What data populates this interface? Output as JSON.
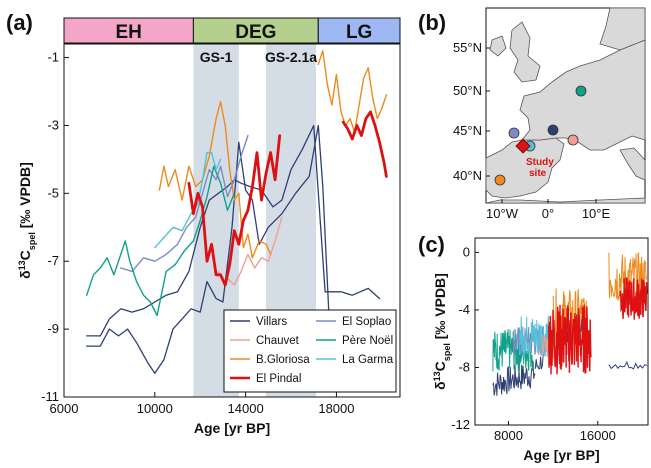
{
  "chart_data": [
    {
      "panel": "(a)",
      "type": "line",
      "xlabel": "Age [yr BP]",
      "ylabel_main": "δ",
      "ylabel_sup": "13",
      "ylabel_c": "C",
      "ylabel_sub": "spel",
      "ylabel_unit": " [‰ VPDB]",
      "xlim": [
        6000,
        20800
      ],
      "ylim": [
        -11,
        -0.6
      ],
      "xticks": [
        6000,
        10000,
        14000,
        18000
      ],
      "yticks": [
        -11,
        -9,
        -7,
        -5,
        -3,
        -1
      ],
      "epochs": [
        {
          "label": "EH",
          "start": 6000,
          "end": 11700,
          "color": "#f4a6c8"
        },
        {
          "label": "DEG",
          "start": 11700,
          "end": 17200,
          "color": "#b5d08e"
        },
        {
          "label": "LG",
          "start": 17200,
          "end": 20800,
          "color": "#9db8f2"
        }
      ],
      "stadials": [
        {
          "label": "GS-1",
          "start": 11700,
          "end": 13700
        },
        {
          "label": "GS-2.1a",
          "start": 14900,
          "end": 17100
        }
      ],
      "series": [
        {
          "name": "Villars",
          "color": "#2e3f73",
          "width": 1.3,
          "points": [
            [
              7000,
              -9.2
            ],
            [
              7600,
              -9.2
            ],
            [
              8000,
              -8.7
            ],
            [
              8500,
              -8.4
            ],
            [
              9000,
              -8.5
            ],
            [
              9500,
              -8.4
            ],
            [
              10000,
              -8.2
            ],
            [
              10500,
              -8.0
            ],
            [
              11000,
              -7.9
            ],
            [
              11500,
              -7.3
            ],
            [
              12000,
              -6.0
            ],
            [
              12400,
              -5.2
            ],
            [
              12800,
              -5.0
            ],
            [
              13200,
              -4.8
            ],
            [
              13500,
              -4.6
            ],
            [
              13800,
              -4.7
            ],
            [
              14200,
              -4.8
            ],
            [
              14700,
              -4.9
            ],
            [
              15200,
              -5.4
            ],
            [
              15600,
              -5.2
            ],
            [
              16000,
              -4.3
            ],
            [
              16500,
              -3.7
            ],
            [
              17000,
              -3.0
            ],
            [
              17500,
              -7.9
            ],
            [
              18200,
              -7.9
            ],
            [
              18700,
              -8.0
            ],
            [
              19400,
              -7.8
            ],
            [
              19900,
              -8.1
            ]
          ]
        },
        {
          "name": "Villars",
          "color": "#2e3f73",
          "width": 1.3,
          "points": [
            [
              7000,
              -9.5
            ],
            [
              7600,
              -9.5
            ],
            [
              8000,
              -9.0
            ],
            [
              8400,
              -9.2
            ],
            [
              8800,
              -9.0
            ],
            [
              9200,
              -9.4
            ],
            [
              9700,
              -10.0
            ],
            [
              10000,
              -10.3
            ],
            [
              10400,
              -9.9
            ],
            [
              10800,
              -9.0
            ],
            [
              11200,
              -8.7
            ],
            [
              11600,
              -8.4
            ],
            [
              12000,
              -8.5
            ],
            [
              12300,
              -7.6
            ],
            [
              12700,
              -8.1
            ],
            [
              13000,
              -8.2
            ],
            [
              13400,
              -6.0
            ],
            [
              13700,
              -3.5
            ],
            [
              14000,
              -4.9
            ],
            [
              14300,
              -5.2
            ],
            [
              14600,
              -6.5
            ],
            [
              15000,
              -6.0
            ],
            [
              15600,
              -5.6
            ],
            [
              16200,
              -5.0
            ],
            [
              16800,
              -4.5
            ],
            [
              17200,
              -3.0
            ],
            [
              17400,
              -4.8
            ],
            [
              17700,
              -9.0
            ],
            [
              18000,
              -9.4
            ],
            [
              18600,
              -10.3
            ],
            [
              19000,
              -9.6
            ],
            [
              19500,
              -8.6
            ],
            [
              19900,
              -8.9
            ]
          ]
        },
        {
          "name": "Chauvet",
          "color": "#f0a090",
          "width": 1.4,
          "points": [
            [
              12800,
              -7.3
            ],
            [
              13000,
              -7.6
            ],
            [
              13200,
              -7.5
            ],
            [
              13500,
              -7.7
            ],
            [
              13800,
              -7.3
            ],
            [
              14100,
              -6.8
            ],
            [
              14400,
              -7.2
            ],
            [
              14700,
              -6.9
            ],
            [
              15000,
              -7.0
            ],
            [
              15300,
              -6.4
            ],
            [
              15600,
              -5.7
            ]
          ]
        },
        {
          "name": "B.Gloriosa",
          "color": "#ee8a1e",
          "width": 1.4,
          "points": [
            [
              10200,
              -4.9
            ],
            [
              10400,
              -4.2
            ],
            [
              10600,
              -4.8
            ],
            [
              10900,
              -4.3
            ],
            [
              11200,
              -5.2
            ],
            [
              11500,
              -4.2
            ],
            [
              11800,
              -4.8
            ],
            [
              12100,
              -4.6
            ],
            [
              12400,
              -3.9
            ],
            [
              12700,
              -2.8
            ],
            [
              12900,
              -2.3
            ],
            [
              13100,
              -3.0
            ],
            [
              13300,
              -4.3
            ],
            [
              13500,
              -5.2
            ],
            [
              13700,
              -5.0
            ],
            [
              13900,
              -6.6
            ],
            [
              14100,
              -6.2
            ],
            [
              14300,
              -6.9
            ],
            [
              14600,
              -6.4
            ],
            [
              14900,
              -6.5
            ],
            [
              15100,
              -6.8
            ]
          ]
        },
        {
          "name": "B.Gloriosa",
          "color": "#ee8a1e",
          "width": 1.4,
          "points": [
            [
              17200,
              -1.2
            ],
            [
              17400,
              -0.8
            ],
            [
              17600,
              -1.8
            ],
            [
              17800,
              -2.4
            ],
            [
              18000,
              -1.5
            ],
            [
              18200,
              -2.6
            ],
            [
              18400,
              -3.0
            ],
            [
              18600,
              -2.8
            ],
            [
              18800,
              -3.2
            ],
            [
              19000,
              -2.4
            ],
            [
              19200,
              -1.6
            ],
            [
              19400,
              -1.3
            ],
            [
              19600,
              -2.2
            ],
            [
              19800,
              -2.8
            ],
            [
              20000,
              -2.5
            ],
            [
              20200,
              -2.1
            ]
          ]
        },
        {
          "name": "El Pindal",
          "color": "#dd1111",
          "width": 2.8,
          "points": [
            [
              11500,
              -4.7
            ],
            [
              11700,
              -5.6
            ],
            [
              11900,
              -5.0
            ],
            [
              12100,
              -5.4
            ],
            [
              12300,
              -7.0
            ],
            [
              12500,
              -6.5
            ],
            [
              12700,
              -7.4
            ],
            [
              12900,
              -7.4
            ],
            [
              13100,
              -7.7
            ],
            [
              13300,
              -7.1
            ],
            [
              13500,
              -6.1
            ],
            [
              13700,
              -6.5
            ],
            [
              13900,
              -5.8
            ],
            [
              14100,
              -5.5
            ],
            [
              14300,
              -4.8
            ],
            [
              14500,
              -3.8
            ],
            [
              14700,
              -5.2
            ],
            [
              14900,
              -4.4
            ],
            [
              15100,
              -3.8
            ],
            [
              15300,
              -4.6
            ],
            [
              15500,
              -3.3
            ]
          ]
        },
        {
          "name": "El Pindal",
          "color": "#dd1111",
          "width": 2.8,
          "points": [
            [
              18300,
              -2.9
            ],
            [
              18500,
              -3.1
            ],
            [
              18700,
              -3.4
            ],
            [
              18900,
              -3.0
            ],
            [
              19100,
              -3.3
            ],
            [
              19300,
              -2.8
            ],
            [
              19500,
              -2.6
            ],
            [
              19700,
              -3.0
            ],
            [
              19900,
              -3.5
            ],
            [
              20100,
              -4.1
            ],
            [
              20200,
              -4.5
            ]
          ]
        },
        {
          "name": "El Soplao",
          "color": "#7f89c6",
          "width": 1.4,
          "points": [
            [
              8500,
              -7.2
            ],
            [
              9000,
              -7.3
            ],
            [
              9500,
              -6.9
            ],
            [
              10000,
              -7.0
            ],
            [
              10500,
              -6.8
            ],
            [
              11000,
              -6.5
            ],
            [
              11400,
              -6.0
            ],
            [
              11800,
              -5.7
            ],
            [
              12100,
              -5.0
            ],
            [
              12400,
              -4.3
            ],
            [
              12700,
              -4.6
            ],
            [
              12900,
              -4.2
            ],
            [
              13200,
              -5.1
            ],
            [
              13500,
              -4.6
            ],
            [
              13800,
              -3.9
            ],
            [
              14100,
              -3.3
            ]
          ]
        },
        {
          "name": "Père Noël",
          "color": "#13a08a",
          "width": 1.4,
          "points": [
            [
              7000,
              -8.0
            ],
            [
              7300,
              -7.4
            ],
            [
              7600,
              -7.2
            ],
            [
              7900,
              -6.9
            ],
            [
              8200,
              -7.4
            ],
            [
              8500,
              -6.8
            ],
            [
              8700,
              -6.4
            ],
            [
              8900,
              -7.0
            ],
            [
              9200,
              -7.6
            ],
            [
              9500,
              -8.0
            ],
            [
              9800,
              -8.2
            ],
            [
              10100,
              -8.6
            ],
            [
              10500,
              -7.3
            ],
            [
              10900,
              -7.1
            ],
            [
              11300,
              -6.7
            ],
            [
              11700,
              -6.4
            ],
            [
              12000,
              -5.8
            ],
            [
              12300,
              -5.1
            ],
            [
              12600,
              -4.2
            ],
            [
              12900,
              -4.7
            ],
            [
              13200,
              -5.5
            ],
            [
              13500,
              -5.0
            ]
          ]
        },
        {
          "name": "La Garma",
          "color": "#55c0d8",
          "width": 1.4,
          "points": [
            [
              10000,
              -6.6
            ],
            [
              10400,
              -6.3
            ],
            [
              10800,
              -6.0
            ],
            [
              11200,
              -6.1
            ],
            [
              11600,
              -5.6
            ],
            [
              11900,
              -5.3
            ],
            [
              12100,
              -4.6
            ],
            [
              12300,
              -3.8
            ],
            [
              12500,
              -3.8
            ],
            [
              12700,
              -4.3
            ],
            [
              12900,
              -4.0
            ]
          ]
        }
      ],
      "legend": [
        "Villars",
        "Chauvet",
        "B.Gloriosa",
        "El Pindal",
        "El Soplao",
        "Père Noël",
        "La Garma"
      ]
    },
    {
      "panel": "(b)",
      "type": "map",
      "lat_ticks": [
        "55°N",
        "50°N",
        "45°N",
        "40°N"
      ],
      "lon_ticks": [
        "10°W",
        "0°",
        "10°E"
      ],
      "study_site_label_1": "Study",
      "study_site_label_2": "site",
      "sites": [
        {
          "name": "Villars",
          "color": "#2e3f73"
        },
        {
          "name": "Chauvet",
          "color": "#f0a090"
        },
        {
          "name": "B.Gloriosa",
          "color": "#ee8a1e"
        },
        {
          "name": "El Pindal",
          "color": "#dd1111"
        },
        {
          "name": "El Soplao",
          "color": "#7f89c6"
        },
        {
          "name": "Père Noël",
          "color": "#13a08a"
        },
        {
          "name": "La Garma",
          "color": "#55c0d8"
        }
      ]
    },
    {
      "panel": "(c)",
      "type": "line",
      "xlabel": "Age [yr BP]",
      "xlim": [
        5000,
        20500
      ],
      "ylim": [
        -12,
        1
      ],
      "xticks": [
        8000,
        16000
      ],
      "yticks": [
        0,
        -4,
        -8,
        -12
      ]
    }
  ],
  "labels": {
    "panel_a": "(a)",
    "panel_b": "(b)",
    "panel_c": "(c)"
  }
}
